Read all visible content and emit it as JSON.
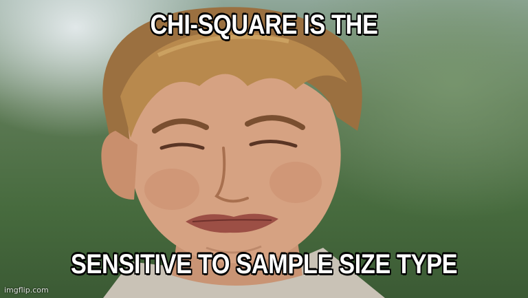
{
  "meme": {
    "top_text": "CHI-SQUARE IS THE",
    "bottom_text": "SENSITIVE TO SAMPLE SIZE TYPE",
    "watermark": "imgflip.com"
  },
  "colors": {
    "caption_fill": "#ffffff",
    "caption_outline": "#000000",
    "background": "#476b3e"
  }
}
